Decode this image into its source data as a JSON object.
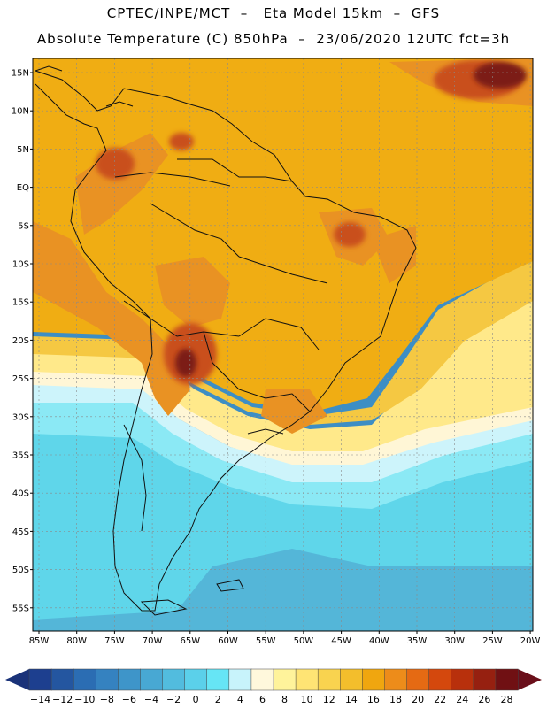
{
  "header": {
    "title_line1": "CPTEC/INPE/MCT  –   Eta Model 15km  –  GFS",
    "title_line2": "Absolute Temperature (C) 850hPa  –  23/06/2020 12UTC fct=3h"
  },
  "map": {
    "lat_labels": [
      "15N",
      "10N",
      "5N",
      "EQ",
      "5S",
      "10S",
      "15S",
      "20S",
      "25S",
      "30S",
      "35S",
      "40S",
      "45S",
      "50S",
      "55S"
    ],
    "lon_labels": [
      "85W",
      "80W",
      "75W",
      "70W",
      "65W",
      "60W",
      "55W",
      "50W",
      "45W",
      "40W",
      "35W",
      "30W",
      "25W",
      "20W"
    ],
    "colors": {
      "ocean_south": "#3d8ec4",
      "band_cold": "#54b6d8",
      "band_cyan": "#5fd6ea",
      "band_light": "#8be9f5",
      "band_pale": "#cdf4fb",
      "band_cream": "#fff6d6",
      "band_yellow": "#ffe98a",
      "band_gold": "#f5c842",
      "band_orange": "#f0ad13",
      "land_warm": "#e99223",
      "hot_spot": "#c9501f",
      "hot_core": "#7c1a12"
    }
  },
  "colorbar": {
    "labels": [
      "-14",
      "-12",
      "-10",
      "-8",
      "-6",
      "-4",
      "-2",
      "0",
      "2",
      "4",
      "6",
      "8",
      "10",
      "12",
      "14",
      "16",
      "18",
      "20",
      "22",
      "24",
      "26",
      "28"
    ],
    "colors": [
      "#1d3f8f",
      "#2456a0",
      "#2b6db3",
      "#3582c0",
      "#3e95c9",
      "#48a8d3",
      "#52bcde",
      "#5bd0ea",
      "#66e5f5",
      "#c8f3fb",
      "#fff8dc",
      "#fff39b",
      "#ffe474",
      "#f9d34f",
      "#f3be2c",
      "#f0a60f",
      "#ed8c1a",
      "#e56a13",
      "#d4480d",
      "#b8300c",
      "#962010",
      "#701013"
    ],
    "left_arrow_color": "#1a3279",
    "right_arrow_color": "#6a0f1a"
  }
}
